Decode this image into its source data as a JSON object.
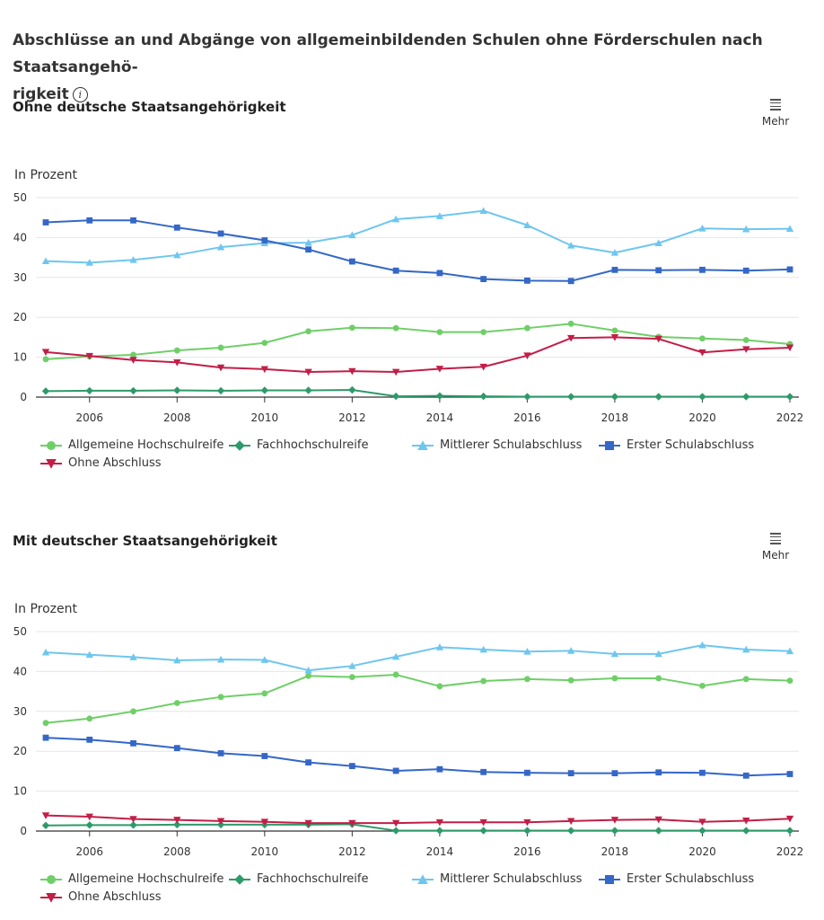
{
  "page": {
    "title": "Abschlüsse an und Abgänge von allgemeinbildenden Schulen ohne Förderschulen nach Staatsangehörigkeit",
    "title_line1": "Abschlüsse an und Abgänge von allgemeinbildenden Schulen ohne Förderschulen nach Staatsangehö-",
    "title_line2": "rigkeit",
    "info_icon": "info-circle-icon",
    "menu_icon": "hamburger-menu-icon",
    "menu_label": "Mehr"
  },
  "colors": {
    "Allgemeine Hochschulreife": "#6fcf67",
    "Fachhochschulreife": "#2e9a6a",
    "Mittlerer Schulabschluss": "#6ec6ef",
    "Erster Schulabschluss": "#3467c6",
    "Ohne Abschluss": "#c21e47"
  },
  "chart_data": [
    {
      "type": "line",
      "title": "Ohne deutsche Staatsangehörigkeit",
      "ylabel": "In Prozent",
      "xlabel": "",
      "ylim": [
        0,
        50
      ],
      "yticks": [
        "0",
        "10",
        "20",
        "30",
        "40",
        "50"
      ],
      "xticks": [
        "2006",
        "2008",
        "2010",
        "2012",
        "2014",
        "2016",
        "2018",
        "2020",
        "2022"
      ],
      "x": [
        2005,
        2006,
        2007,
        2008,
        2009,
        2010,
        2011,
        2012,
        2013,
        2014,
        2015,
        2016,
        2017,
        2018,
        2019,
        2020,
        2021,
        2022
      ],
      "grid": true,
      "legend": "bottom",
      "series": [
        {
          "name": "Allgemeine Hochschulreife",
          "marker": "circle",
          "values": [
            9.5,
            10.2,
            10.6,
            11.7,
            12.4,
            13.6,
            16.5,
            17.4,
            17.3,
            16.3,
            16.3,
            17.3,
            18.4,
            16.7,
            15.1,
            14.7,
            14.3,
            13.3
          ]
        },
        {
          "name": "Fachhochschulreife",
          "marker": "diamond",
          "values": [
            1.5,
            1.6,
            1.6,
            1.7,
            1.6,
            1.7,
            1.7,
            1.8,
            0.2,
            0.3,
            0.2,
            0.1,
            0.1,
            0.1,
            0.1,
            0.1,
            0.1,
            0.1
          ]
        },
        {
          "name": "Mittlerer Schulabschluss",
          "marker": "triangle-up",
          "values": [
            34.1,
            33.7,
            34.4,
            35.6,
            37.6,
            38.6,
            38.7,
            40.6,
            44.6,
            45.4,
            46.7,
            43.1,
            38.0,
            36.2,
            38.6,
            42.3,
            42.1,
            42.2
          ]
        },
        {
          "name": "Erster Schulabschluss",
          "marker": "square",
          "values": [
            43.8,
            44.3,
            44.3,
            42.5,
            41.0,
            39.3,
            37.0,
            34.0,
            31.7,
            31.1,
            29.6,
            29.2,
            29.1,
            31.9,
            31.8,
            31.9,
            31.7,
            32.0
          ]
        },
        {
          "name": "Ohne Abschluss",
          "marker": "triangle-down",
          "values": [
            11.3,
            10.3,
            9.3,
            8.7,
            7.4,
            7.0,
            6.3,
            6.5,
            6.3,
            7.1,
            7.6,
            10.4,
            14.8,
            15.0,
            14.6,
            11.2,
            12.0,
            12.4
          ]
        }
      ]
    },
    {
      "type": "line",
      "title": "Mit deutscher Staatsangehörigkeit",
      "ylabel": "In Prozent",
      "xlabel": "",
      "ylim": [
        0,
        50
      ],
      "yticks": [
        "0",
        "10",
        "20",
        "30",
        "40",
        "50"
      ],
      "xticks": [
        "2006",
        "2008",
        "2010",
        "2012",
        "2014",
        "2016",
        "2018",
        "2020",
        "2022"
      ],
      "x": [
        2005,
        2006,
        2007,
        2008,
        2009,
        2010,
        2011,
        2012,
        2013,
        2014,
        2015,
        2016,
        2017,
        2018,
        2019,
        2020,
        2021,
        2022
      ],
      "grid": true,
      "legend": "bottom",
      "series": [
        {
          "name": "Allgemeine Hochschulreife",
          "marker": "circle",
          "values": [
            27.1,
            28.2,
            30.0,
            32.1,
            33.6,
            34.5,
            38.9,
            38.6,
            39.2,
            36.3,
            37.6,
            38.1,
            37.8,
            38.3,
            38.3,
            36.4,
            38.1,
            37.7
          ]
        },
        {
          "name": "Fachhochschulreife",
          "marker": "diamond",
          "values": [
            1.4,
            1.5,
            1.5,
            1.6,
            1.6,
            1.6,
            1.6,
            1.7,
            0.1,
            0.1,
            0.1,
            0.1,
            0.1,
            0.1,
            0.1,
            0.1,
            0.1,
            0.1
          ]
        },
        {
          "name": "Mittlerer Schulabschluss",
          "marker": "triangle-up",
          "values": [
            44.8,
            44.2,
            43.6,
            42.8,
            43.0,
            42.9,
            40.3,
            41.4,
            43.7,
            46.1,
            45.5,
            45.0,
            45.2,
            44.4,
            44.4,
            46.6,
            45.5,
            45.1
          ]
        },
        {
          "name": "Erster Schulabschluss",
          "marker": "square",
          "values": [
            23.4,
            22.9,
            22.0,
            20.8,
            19.5,
            18.8,
            17.2,
            16.3,
            15.1,
            15.5,
            14.8,
            14.6,
            14.5,
            14.5,
            14.7,
            14.6,
            13.9,
            14.3
          ]
        },
        {
          "name": "Ohne Abschluss",
          "marker": "triangle-down",
          "values": [
            3.9,
            3.6,
            3.0,
            2.8,
            2.5,
            2.3,
            2.0,
            2.0,
            2.0,
            2.2,
            2.2,
            2.2,
            2.5,
            2.8,
            2.9,
            2.3,
            2.6,
            3.1
          ]
        }
      ]
    }
  ]
}
